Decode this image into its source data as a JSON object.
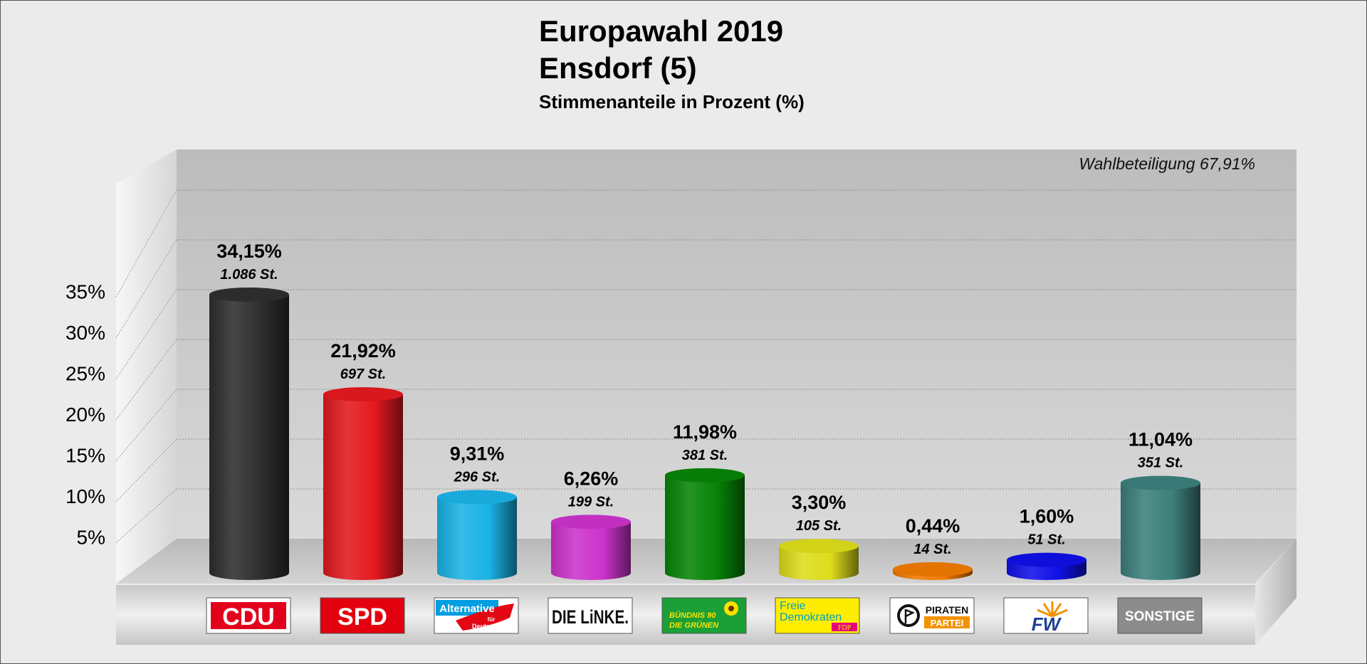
{
  "chart_data": {
    "type": "bar",
    "title": "Europawahl 2019",
    "subtitle": "Ensdorf (5)",
    "caption": "Stimmenanteile in Prozent (%)",
    "annotation": "Wahlbeteiligung 67,91%",
    "ylim": [
      0,
      38
    ],
    "yticks": [
      5,
      10,
      15,
      20,
      25,
      30,
      35
    ],
    "ytick_labels": [
      "5%",
      "10%",
      "15%",
      "20%",
      "25%",
      "30%",
      "35%"
    ],
    "grid": true,
    "categories": [
      "CDU",
      "SPD",
      "Alternative für Deutschland",
      "DIE LINKE.",
      "BÜNDNIS 90 DIE GRÜNEN",
      "Freie Demokraten FDP",
      "PIRATEN PARTEI",
      "FW",
      "SONSTIGE"
    ],
    "values": [
      34.15,
      21.92,
      9.31,
      6.26,
      11.98,
      3.3,
      0.44,
      1.6,
      11.04
    ],
    "value_labels": [
      "34,15%",
      "21,92%",
      "9,31%",
      "6,26%",
      "11,98%",
      "3,30%",
      "0,44%",
      "1,60%",
      "11,04%"
    ],
    "votes": [
      "1.086 St.",
      "697 St.",
      "296 St.",
      "199 St.",
      "381 St.",
      "105 St.",
      "14 St.",
      "51 St.",
      "351 St."
    ],
    "colors": [
      "#2e2e2e",
      "#e3191f",
      "#1ab3e6",
      "#cc33cc",
      "#078407",
      "#dddd1a",
      "#f07a00",
      "#1010e8",
      "#3c7f7b"
    ]
  },
  "logos": {
    "cdu": "CDU",
    "spd": "SPD",
    "afd": {
      "line1": "Alternative",
      "line2": "für",
      "line3": "Deutschland"
    },
    "linke": "DIE LiNKE.",
    "gruene": {
      "line1": "BÜNDNIS 90",
      "line2": "DIE GRÜNEN"
    },
    "fdp": {
      "line1": "Freie",
      "line2": "Demokraten",
      "line3": "FDP"
    },
    "piraten": {
      "line1": "PIRATEN",
      "line2": "PARTEI"
    },
    "fw": "FW",
    "sonstige": "SONSTIGE"
  }
}
